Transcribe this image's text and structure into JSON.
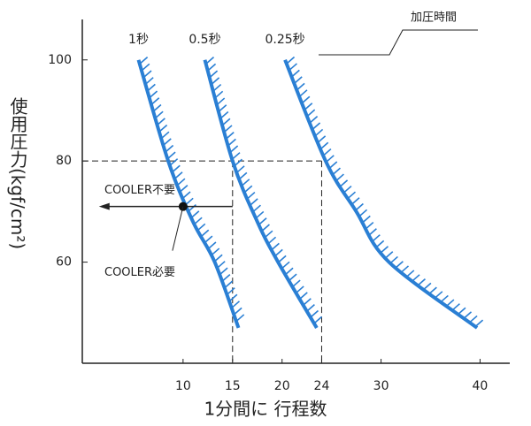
{
  "chart_data": {
    "type": "line",
    "x_label": "1分間に 行程数",
    "y_label": "使用圧力(kgf/cm²)",
    "legend_title": "加圧時間",
    "xlim": [
      0,
      43
    ],
    "ylim": [
      40,
      108
    ],
    "xticks": [
      10,
      15,
      20,
      24,
      30,
      40
    ],
    "yticks": [
      60,
      80,
      100
    ],
    "series": [
      {
        "name": "1秒",
        "color": "#2a7fd4",
        "x": [
          5.5,
          8.5,
          11,
          13.2,
          15.6
        ],
        "values": [
          100,
          80,
          68,
          60,
          47
        ]
      },
      {
        "name": "0.5秒",
        "color": "#2a7fd4",
        "x": [
          12.2,
          15,
          17.5,
          19.6,
          23.5
        ],
        "values": [
          100,
          80,
          68,
          60,
          47
        ]
      },
      {
        "name": "0.25秒",
        "color": "#2a7fd4",
        "x": [
          20.3,
          24.4,
          27.5,
          30.8,
          39.7
        ],
        "values": [
          100,
          80,
          70,
          60,
          47
        ]
      }
    ],
    "reference": {
      "y": 80,
      "x": [
        15,
        24
      ]
    },
    "cooler_point": {
      "x": 10,
      "y": 71
    },
    "cooler_arrow": {
      "x": [
        15,
        1.5
      ],
      "y": 71
    },
    "annotations": [
      "COOLER不要",
      "COOLER必要"
    ]
  }
}
